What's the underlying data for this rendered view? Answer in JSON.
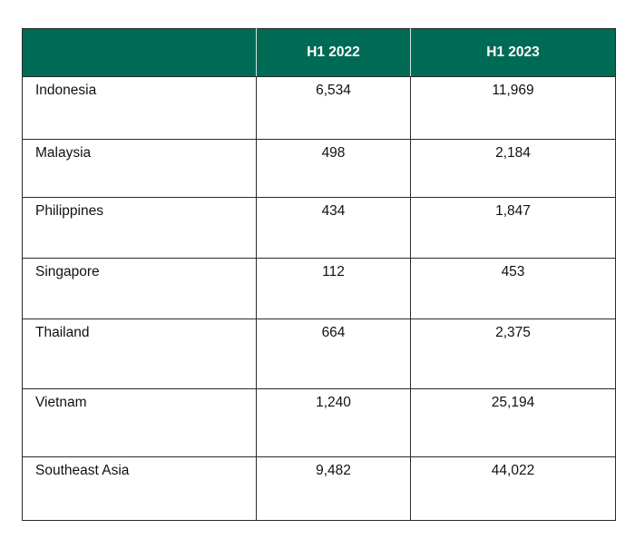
{
  "colors": {
    "header_bg": "#006b55",
    "header_text": "#ffffff",
    "grid": "#2b2b2b"
  },
  "chart_data": {
    "type": "table",
    "columns": [
      "",
      "H1 2022",
      "H1 2023"
    ],
    "rows": [
      {
        "label": "Indonesia",
        "values": [
          "6,534",
          "11,969"
        ]
      },
      {
        "label": "Malaysia",
        "values": [
          "498",
          "2,184"
        ]
      },
      {
        "label": "Philippines",
        "values": [
          "434",
          "1,847"
        ]
      },
      {
        "label": "Singapore",
        "values": [
          "112",
          "453"
        ]
      },
      {
        "label": "Thailand",
        "values": [
          "664",
          "2,375"
        ]
      },
      {
        "label": "Vietnam",
        "values": [
          "1,240",
          "25,194"
        ]
      },
      {
        "label": "Southeast Asia",
        "values": [
          "9,482",
          "44,022"
        ]
      }
    ]
  }
}
